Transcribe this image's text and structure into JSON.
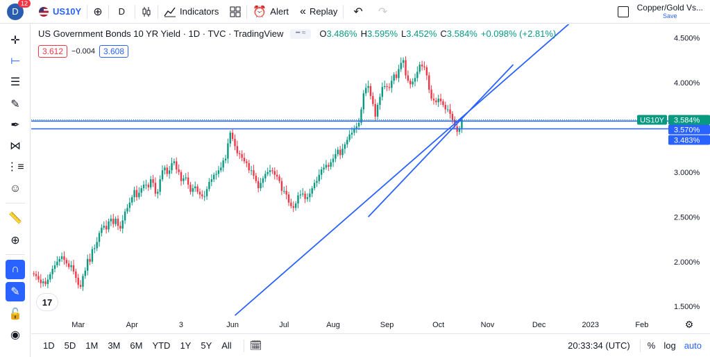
{
  "header": {
    "notifications": "12",
    "avatar_letter": "D",
    "symbol": "US10Y",
    "interval": "D",
    "indicators_label": "Indicators",
    "alert_label": "Alert",
    "replay_label": "Replay",
    "layout_name": "Copper/Gold Vs...",
    "layout_save": "Save"
  },
  "legend": {
    "title": "US Government Bonds 10 YR Yield · 1D · TVC · TradingView",
    "open_key": "O",
    "open": "3.486%",
    "high_key": "H",
    "high": "3.595%",
    "low_key": "L",
    "low": "3.452%",
    "close_key": "C",
    "close": "3.584%",
    "change": "+0.098% (+2.81%)"
  },
  "price_box": {
    "bid": "3.612",
    "spread": "−0.004",
    "ask": "3.608"
  },
  "bottom": {
    "ranges": [
      "1D",
      "5D",
      "1M",
      "3M",
      "6M",
      "YTD",
      "1Y",
      "5Y",
      "All"
    ],
    "clock": "20:33:34 (UTC)",
    "percent": "%",
    "log": "log",
    "auto": "auto"
  },
  "colors": {
    "up": "#089981",
    "down": "#f23645",
    "line": "#2962ff",
    "accent": "#2962ff"
  },
  "chart_data": {
    "type": "candlestick",
    "title": "US Government Bonds 10 YR Yield · 1D · TVC · TradingView",
    "y_ticks": [
      "4.500%",
      "4.000%",
      "3.500%",
      "3.000%",
      "2.500%",
      "2.000%",
      "1.500%"
    ],
    "y_tick_values": [
      4.5,
      4.0,
      3.5,
      3.0,
      2.5,
      2.0,
      1.5
    ],
    "ylim": [
      1.37,
      4.65
    ],
    "x_ticks": [
      {
        "label": "Mar",
        "idx": 19
      },
      {
        "label": "Apr",
        "idx": 42
      },
      {
        "label": "3",
        "idx": 63
      },
      {
        "label": "Jun",
        "idx": 85
      },
      {
        "label": "Jul",
        "idx": 107
      },
      {
        "label": "Aug",
        "idx": 128
      },
      {
        "label": "Sep",
        "idx": 151
      },
      {
        "label": "Oct",
        "idx": 173
      },
      {
        "label": "Nov",
        "idx": 194
      },
      {
        "label": "Dec",
        "idx": 216
      },
      {
        "label": "2023",
        "idx": 238
      },
      {
        "label": "Feb",
        "idx": 260
      }
    ],
    "axis_labels": [
      {
        "text": "US10Y",
        "value": 3.584,
        "kind": "symbol"
      },
      {
        "text": "3.584%",
        "value": 3.584,
        "kind": "last"
      },
      {
        "text": "3.570%",
        "value": 3.57,
        "kind": "line"
      },
      {
        "text": "3.483%",
        "value": 3.483,
        "kind": "line"
      }
    ],
    "horizontal_lines": [
      3.57,
      3.483
    ],
    "trendlines": [
      {
        "from": [
          86,
          1.4
        ],
        "to": [
          233,
          4.75
        ]
      },
      {
        "from": [
          143,
          2.5
        ],
        "to": [
          205,
          4.2
        ]
      }
    ],
    "closes": [
      1.86,
      1.84,
      1.8,
      1.76,
      1.78,
      1.75,
      1.8,
      1.86,
      1.92,
      1.96,
      2.0,
      2.03,
      2.06,
      2.02,
      1.98,
      1.94,
      1.96,
      1.89,
      1.82,
      1.74,
      1.72,
      1.84,
      1.9,
      2.03,
      2.0,
      2.14,
      2.15,
      2.22,
      2.32,
      2.38,
      2.4,
      2.36,
      2.45,
      2.48,
      2.42,
      2.48,
      2.4,
      2.37,
      2.46,
      2.56,
      2.6,
      2.66,
      2.72,
      2.8,
      2.72,
      2.77,
      2.82,
      2.86,
      2.86,
      2.83,
      2.92,
      2.88,
      2.76,
      2.78,
      2.92,
      3.02,
      3.05,
      2.98,
      3.02,
      3.1,
      3.12,
      3.03,
      3.0,
      2.9,
      2.93,
      2.94,
      2.86,
      2.78,
      2.82,
      2.84,
      2.78,
      2.75,
      2.73,
      2.73,
      2.81,
      2.89,
      2.92,
      2.97,
      2.98,
      3.02,
      3.05,
      3.13,
      3.15,
      3.32,
      3.44,
      3.37,
      3.29,
      3.21,
      3.2,
      3.16,
      3.12,
      3.1,
      3.02,
      3.02,
      2.96,
      2.9,
      2.82,
      2.88,
      2.93,
      2.98,
      3.0,
      3.02,
      3.01,
      2.97,
      2.95,
      2.9,
      2.79,
      2.79,
      2.75,
      2.66,
      2.62,
      2.6,
      2.65,
      2.74,
      2.75,
      2.76,
      2.7,
      2.72,
      2.76,
      2.82,
      2.88,
      2.9,
      2.97,
      3.03,
      3.05,
      3.08,
      3.06,
      3.11,
      3.15,
      3.2,
      3.25,
      3.19,
      3.26,
      3.31,
      3.36,
      3.42,
      3.44,
      3.49,
      3.51,
      3.55,
      3.7,
      3.88,
      3.94,
      3.96,
      3.85,
      3.76,
      3.62,
      3.75,
      3.84,
      3.95,
      3.96,
      3.95,
      3.94,
      4.02,
      4.09,
      4.05,
      4.15,
      4.22,
      4.25,
      4.08,
      4.02,
      3.98,
      4.01,
      4.05,
      4.12,
      4.2,
      4.18,
      4.17,
      4.08,
      3.92,
      3.82,
      3.8,
      3.78,
      3.82,
      3.79,
      3.75,
      3.7,
      3.7,
      3.65,
      3.58,
      3.51,
      3.45,
      3.49,
      3.58
    ]
  }
}
